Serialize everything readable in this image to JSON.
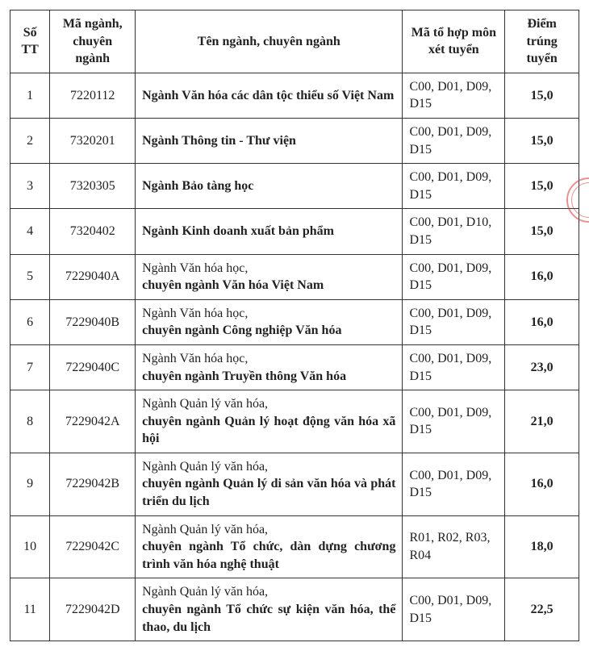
{
  "table": {
    "headers": {
      "stt": "Số TT",
      "code": "Mã ngành, chuyên ngành",
      "name": "Tên ngành, chuyên ngành",
      "combo": "Mã tổ hợp môn xét tuyển",
      "score": "Điểm trúng tuyển"
    },
    "rows": [
      {
        "stt": "1",
        "code": "7220112",
        "name_plain": "",
        "name_bold": "Ngành Văn hóa các dân tộc thiểu số Việt Nam",
        "combo": "C00, D01, D09, D15",
        "score": "15,0"
      },
      {
        "stt": "2",
        "code": "7320201",
        "name_plain": "",
        "name_bold": "Ngành Thông tin - Thư viện",
        "combo": "C00, D01, D09, D15",
        "score": "15,0"
      },
      {
        "stt": "3",
        "code": "7320305",
        "name_plain": "",
        "name_bold": "Ngành Bảo tàng học",
        "combo": "C00, D01, D09, D15",
        "score": "15,0"
      },
      {
        "stt": "4",
        "code": "7320402",
        "name_plain": "",
        "name_bold": "Ngành Kinh doanh xuất bản phẩm",
        "combo": "C00, D01, D10, D15",
        "score": "15,0"
      },
      {
        "stt": "5",
        "code": "7229040A",
        "name_plain": "Ngành Văn hóa học,",
        "name_bold": "chuyên ngành Văn hóa Việt Nam",
        "combo": "C00, D01, D09, D15",
        "score": "16,0"
      },
      {
        "stt": "6",
        "code": "7229040B",
        "name_plain": "Ngành Văn hóa học,",
        "name_bold": "chuyên ngành Công nghiệp Văn hóa",
        "combo": "C00, D01, D09, D15",
        "score": "16,0"
      },
      {
        "stt": "7",
        "code": "7229040C",
        "name_plain": "Ngành Văn hóa học,",
        "name_bold": "chuyên ngành Truyền thông Văn hóa",
        "combo": "C00, D01, D09, D15",
        "score": "23,0"
      },
      {
        "stt": "8",
        "code": "7229042A",
        "name_plain": "Ngành Quản lý văn hóa,",
        "name_bold": "chuyên ngành Quản lý hoạt động văn hóa xã hội",
        "combo": "C00, D01, D09, D15",
        "score": "21,0"
      },
      {
        "stt": "9",
        "code": "7229042B",
        "name_plain": "Ngành Quản lý văn hóa,",
        "name_bold": "chuyên ngành Quản lý di sản văn hóa và phát triển du lịch",
        "combo": "C00, D01, D09, D15",
        "score": "16,0"
      },
      {
        "stt": "10",
        "code": "7229042C",
        "name_plain": "Ngành Quản lý văn hóa,",
        "name_bold": "chuyên ngành Tổ chức, dàn dựng chương trình văn hóa nghệ thuật",
        "combo": "R01, R02, R03, R04",
        "score": "18,0"
      },
      {
        "stt": "11",
        "code": "7229042D",
        "name_plain": "Ngành Quản lý văn hóa,",
        "name_bold": "chuyên ngành Tổ chức sự kiện văn hóa, thể thao, du lịch",
        "combo": "C00, D01, D09, D15",
        "score": "22,5"
      }
    ],
    "border_color": "#333333",
    "background_color": "#ffffff",
    "text_color": "#222222",
    "font_family": "Times New Roman",
    "header_fontsize": 16,
    "cell_fontsize": 16
  },
  "stamp": {
    "color": "#d33a3a",
    "opacity": 0.55
  }
}
